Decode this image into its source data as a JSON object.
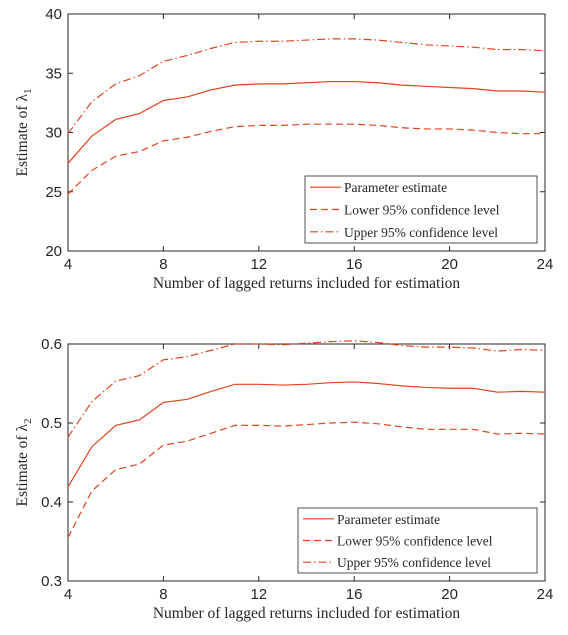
{
  "chart_data": [
    {
      "type": "line",
      "title": "",
      "xlabel": "Number of lagged returns included for estimation",
      "ylabel": "Estimate of λ",
      "ylabel_subscript": "1",
      "xlim": [
        4,
        24
      ],
      "ylim": [
        20,
        40
      ],
      "xticks": [
        "4",
        "8",
        "12",
        "16",
        "20",
        "24"
      ],
      "yticks": [
        "20",
        "25",
        "30",
        "35",
        "40"
      ],
      "grid": false,
      "legend_position": "bottom-right",
      "x": [
        4,
        5,
        6,
        7,
        8,
        9,
        10,
        11,
        12,
        13,
        14,
        15,
        16,
        17,
        18,
        19,
        20,
        21,
        22,
        23,
        24
      ],
      "series": [
        {
          "name": "Parameter estimate",
          "style": "solid",
          "values": [
            27.4,
            29.7,
            31.1,
            31.6,
            32.7,
            33.0,
            33.6,
            34.0,
            34.1,
            34.1,
            34.2,
            34.3,
            34.3,
            34.2,
            34.0,
            33.9,
            33.8,
            33.7,
            33.5,
            33.5,
            33.4
          ]
        },
        {
          "name": "Lower 95% confidence level",
          "style": "dashed",
          "values": [
            24.8,
            26.8,
            28.0,
            28.4,
            29.3,
            29.6,
            30.1,
            30.5,
            30.6,
            30.6,
            30.7,
            30.7,
            30.7,
            30.6,
            30.4,
            30.3,
            30.3,
            30.2,
            30.0,
            29.9,
            29.9
          ]
        },
        {
          "name": "Upper 95% confidence level",
          "style": "dashdot",
          "values": [
            29.9,
            32.6,
            34.1,
            34.8,
            36.0,
            36.5,
            37.1,
            37.6,
            37.7,
            37.7,
            37.8,
            37.9,
            37.9,
            37.8,
            37.6,
            37.4,
            37.3,
            37.2,
            37.0,
            37.0,
            36.9
          ]
        }
      ]
    },
    {
      "type": "line",
      "title": "",
      "xlabel": "Number of lagged returns included for estimation",
      "ylabel": "Estimate of λ",
      "ylabel_subscript": "2",
      "xlim": [
        4,
        24
      ],
      "ylim": [
        0.3,
        0.6
      ],
      "xticks": [
        "4",
        "8",
        "12",
        "16",
        "20",
        "24"
      ],
      "yticks": [
        "0.3",
        "0.4",
        "0.5",
        "0.6"
      ],
      "grid": false,
      "legend_position": "bottom-right",
      "x": [
        4,
        5,
        6,
        7,
        8,
        9,
        10,
        11,
        12,
        13,
        14,
        15,
        16,
        17,
        18,
        19,
        20,
        21,
        22,
        23,
        24
      ],
      "series": [
        {
          "name": "Parameter estimate",
          "style": "solid",
          "values": [
            0.419,
            0.47,
            0.497,
            0.504,
            0.526,
            0.53,
            0.54,
            0.549,
            0.549,
            0.548,
            0.549,
            0.551,
            0.552,
            0.55,
            0.547,
            0.545,
            0.544,
            0.544,
            0.539,
            0.54,
            0.539
          ]
        },
        {
          "name": "Lower 95% confidence level",
          "style": "dashed",
          "values": [
            0.355,
            0.414,
            0.441,
            0.448,
            0.472,
            0.477,
            0.487,
            0.497,
            0.497,
            0.496,
            0.498,
            0.5,
            0.501,
            0.499,
            0.495,
            0.492,
            0.492,
            0.492,
            0.486,
            0.487,
            0.486
          ]
        },
        {
          "name": "Upper 95% confidence level",
          "style": "dashdot",
          "values": [
            0.482,
            0.527,
            0.553,
            0.56,
            0.58,
            0.584,
            0.592,
            0.6,
            0.6,
            0.599,
            0.601,
            0.603,
            0.604,
            0.602,
            0.598,
            0.596,
            0.596,
            0.595,
            0.591,
            0.593,
            0.592
          ]
        }
      ]
    }
  ],
  "line_color": "#e2431b"
}
